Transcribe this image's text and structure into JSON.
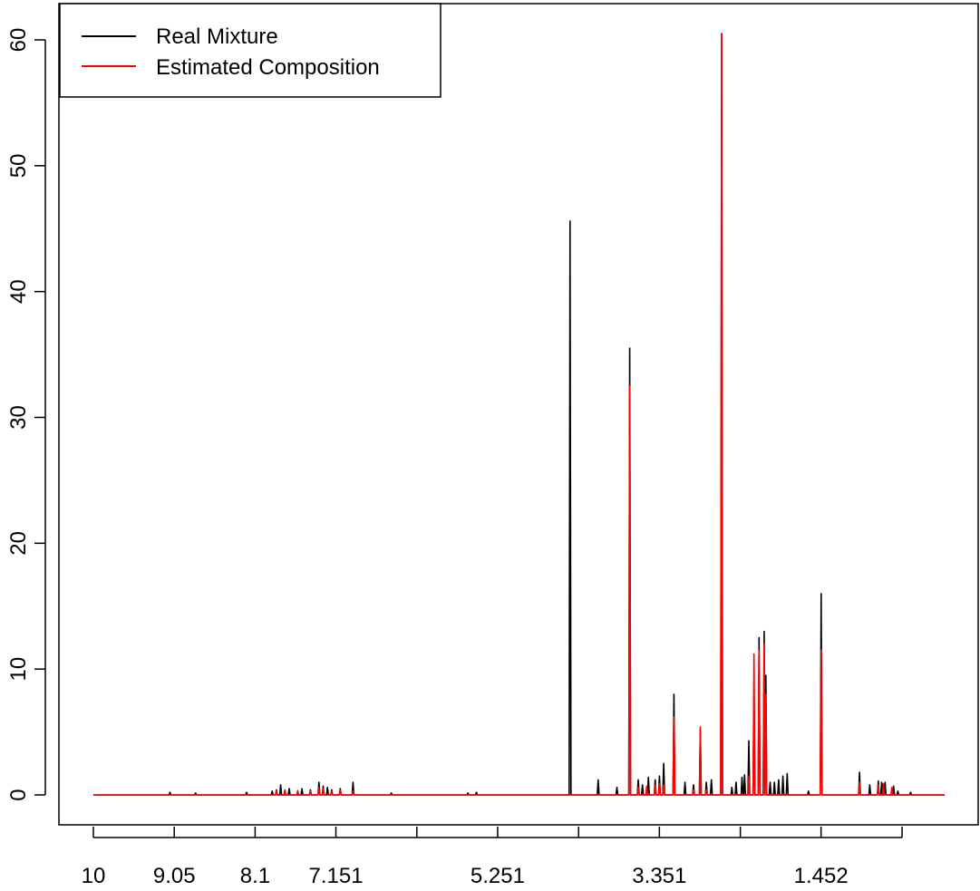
{
  "chart_data": {
    "type": "line",
    "title": "",
    "xlabel": "",
    "ylabel": "",
    "xlim": [
      10,
      0
    ],
    "ylim": [
      0,
      60
    ],
    "y_ticks": [
      0,
      10,
      20,
      30,
      40,
      50,
      60
    ],
    "x_ticks": [
      10,
      9.05,
      8.1,
      7.151,
      6.2,
      5.251,
      4.3,
      3.351,
      2.4,
      1.452,
      0.5
    ],
    "x_tick_labels": [
      "10",
      "9.05",
      "8.1",
      "7.151",
      "",
      "5.251",
      "",
      "3.351",
      "",
      "1.452",
      ""
    ],
    "grid": false,
    "legend": {
      "position": "top-left"
    },
    "series": [
      {
        "name": "Real Mixture",
        "color": "#000000",
        "peaks": [
          [
            9.1,
            0.2
          ],
          [
            8.8,
            0.15
          ],
          [
            8.2,
            0.2
          ],
          [
            7.9,
            0.3
          ],
          [
            7.85,
            0.4
          ],
          [
            7.8,
            0.8
          ],
          [
            7.7,
            0.5
          ],
          [
            7.55,
            0.5
          ],
          [
            7.45,
            0.4
          ],
          [
            7.35,
            1.0
          ],
          [
            7.3,
            0.7
          ],
          [
            7.25,
            0.6
          ],
          [
            7.2,
            0.4
          ],
          [
            7.1,
            0.5
          ],
          [
            6.95,
            1.0
          ],
          [
            6.5,
            0.15
          ],
          [
            5.6,
            0.15
          ],
          [
            5.5,
            0.2
          ],
          [
            4.4,
            45.6
          ],
          [
            4.07,
            1.2
          ],
          [
            3.85,
            0.6
          ],
          [
            3.7,
            35.5
          ],
          [
            3.6,
            1.2
          ],
          [
            3.55,
            0.8
          ],
          [
            3.48,
            1.4
          ],
          [
            3.4,
            1.2
          ],
          [
            3.35,
            1.5
          ],
          [
            3.3,
            2.5
          ],
          [
            3.18,
            8.0
          ],
          [
            3.05,
            1.0
          ],
          [
            2.95,
            0.8
          ],
          [
            2.87,
            5.2
          ],
          [
            2.8,
            1.0
          ],
          [
            2.74,
            1.2
          ],
          [
            2.62,
            60.5
          ],
          [
            2.5,
            0.6
          ],
          [
            2.45,
            1.0
          ],
          [
            2.38,
            1.4
          ],
          [
            2.35,
            1.6
          ],
          [
            2.3,
            4.3
          ],
          [
            2.24,
            8.0
          ],
          [
            2.18,
            12.5
          ],
          [
            2.12,
            13.0
          ],
          [
            2.1,
            9.5
          ],
          [
            2.05,
            1.0
          ],
          [
            2.0,
            1.0
          ],
          [
            1.95,
            1.2
          ],
          [
            1.9,
            1.5
          ],
          [
            1.85,
            1.7
          ],
          [
            1.6,
            0.3
          ],
          [
            1.45,
            16.0
          ],
          [
            1.0,
            1.8
          ],
          [
            0.88,
            0.8
          ],
          [
            0.78,
            1.1
          ],
          [
            0.74,
            1.0
          ],
          [
            0.7,
            1.0
          ],
          [
            0.6,
            0.7
          ],
          [
            0.55,
            0.3
          ],
          [
            0.4,
            0.2
          ]
        ]
      },
      {
        "name": "Estimated Composition",
        "color": "#ff0000",
        "peaks": [
          [
            7.85,
            0.35
          ],
          [
            7.75,
            0.4
          ],
          [
            7.6,
            0.35
          ],
          [
            7.45,
            0.3
          ],
          [
            7.35,
            0.6
          ],
          [
            7.3,
            0.5
          ],
          [
            7.2,
            0.3
          ],
          [
            7.1,
            0.4
          ],
          [
            6.95,
            0.3
          ],
          [
            3.7,
            32.5
          ],
          [
            3.6,
            0.6
          ],
          [
            3.5,
            0.7
          ],
          [
            3.4,
            0.8
          ],
          [
            3.35,
            0.9
          ],
          [
            3.3,
            0.8
          ],
          [
            3.18,
            6.2
          ],
          [
            2.95,
            0.4
          ],
          [
            2.87,
            5.4
          ],
          [
            2.8,
            0.4
          ],
          [
            2.62,
            60.5
          ],
          [
            2.3,
            1.5
          ],
          [
            2.24,
            11.2
          ],
          [
            2.18,
            11.5
          ],
          [
            2.12,
            12.0
          ],
          [
            2.1,
            8.0
          ],
          [
            1.45,
            11.5
          ],
          [
            1.0,
            1.0
          ],
          [
            0.78,
            0.8
          ],
          [
            0.72,
            0.9
          ],
          [
            0.62,
            0.6
          ]
        ]
      }
    ]
  }
}
